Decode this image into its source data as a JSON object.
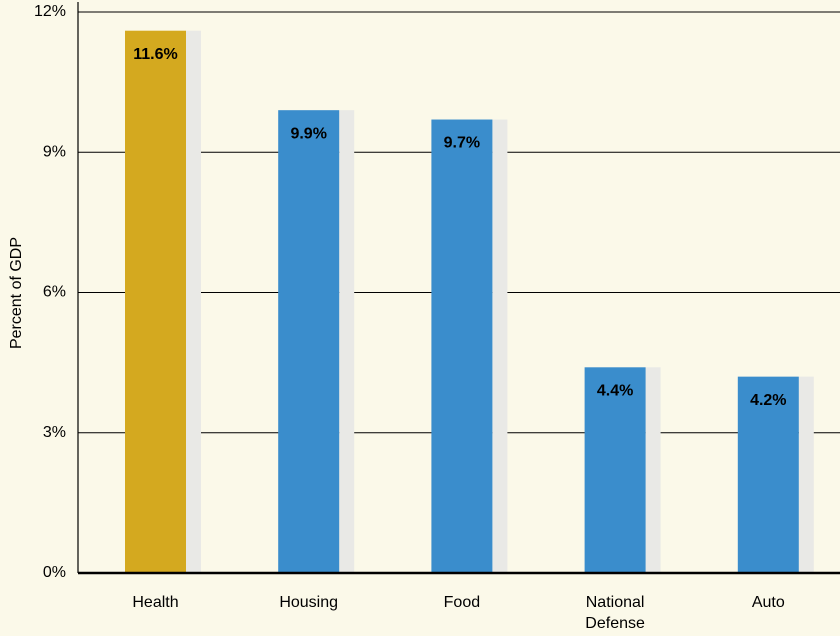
{
  "chart_data": {
    "type": "bar",
    "y_label": "Percent of GDP",
    "categories": [
      "Health",
      "Housing",
      "Food",
      "National Defense",
      "Auto"
    ],
    "values": [
      11.6,
      9.9,
      9.7,
      4.4,
      4.2
    ],
    "value_labels": [
      "11.6%",
      "9.9%",
      "9.7%",
      "4.4%",
      "4.2%"
    ],
    "colors": [
      "#d4a91f",
      "#3a8dcc",
      "#3a8dcc",
      "#3a8dcc",
      "#3a8dcc"
    ],
    "value_label_colors": [
      "#000000",
      "#ffffff",
      "#ffffff",
      "#ffffff",
      "#ffffff"
    ],
    "ylim": [
      0,
      12
    ],
    "yticks": [
      {
        "value": 0,
        "label": "0%"
      },
      {
        "value": 3,
        "label": "3%"
      },
      {
        "value": 6,
        "label": "6%"
      },
      {
        "value": 9,
        "label": "9%"
      },
      {
        "value": 12,
        "label": "12%"
      }
    ],
    "grid": true
  }
}
